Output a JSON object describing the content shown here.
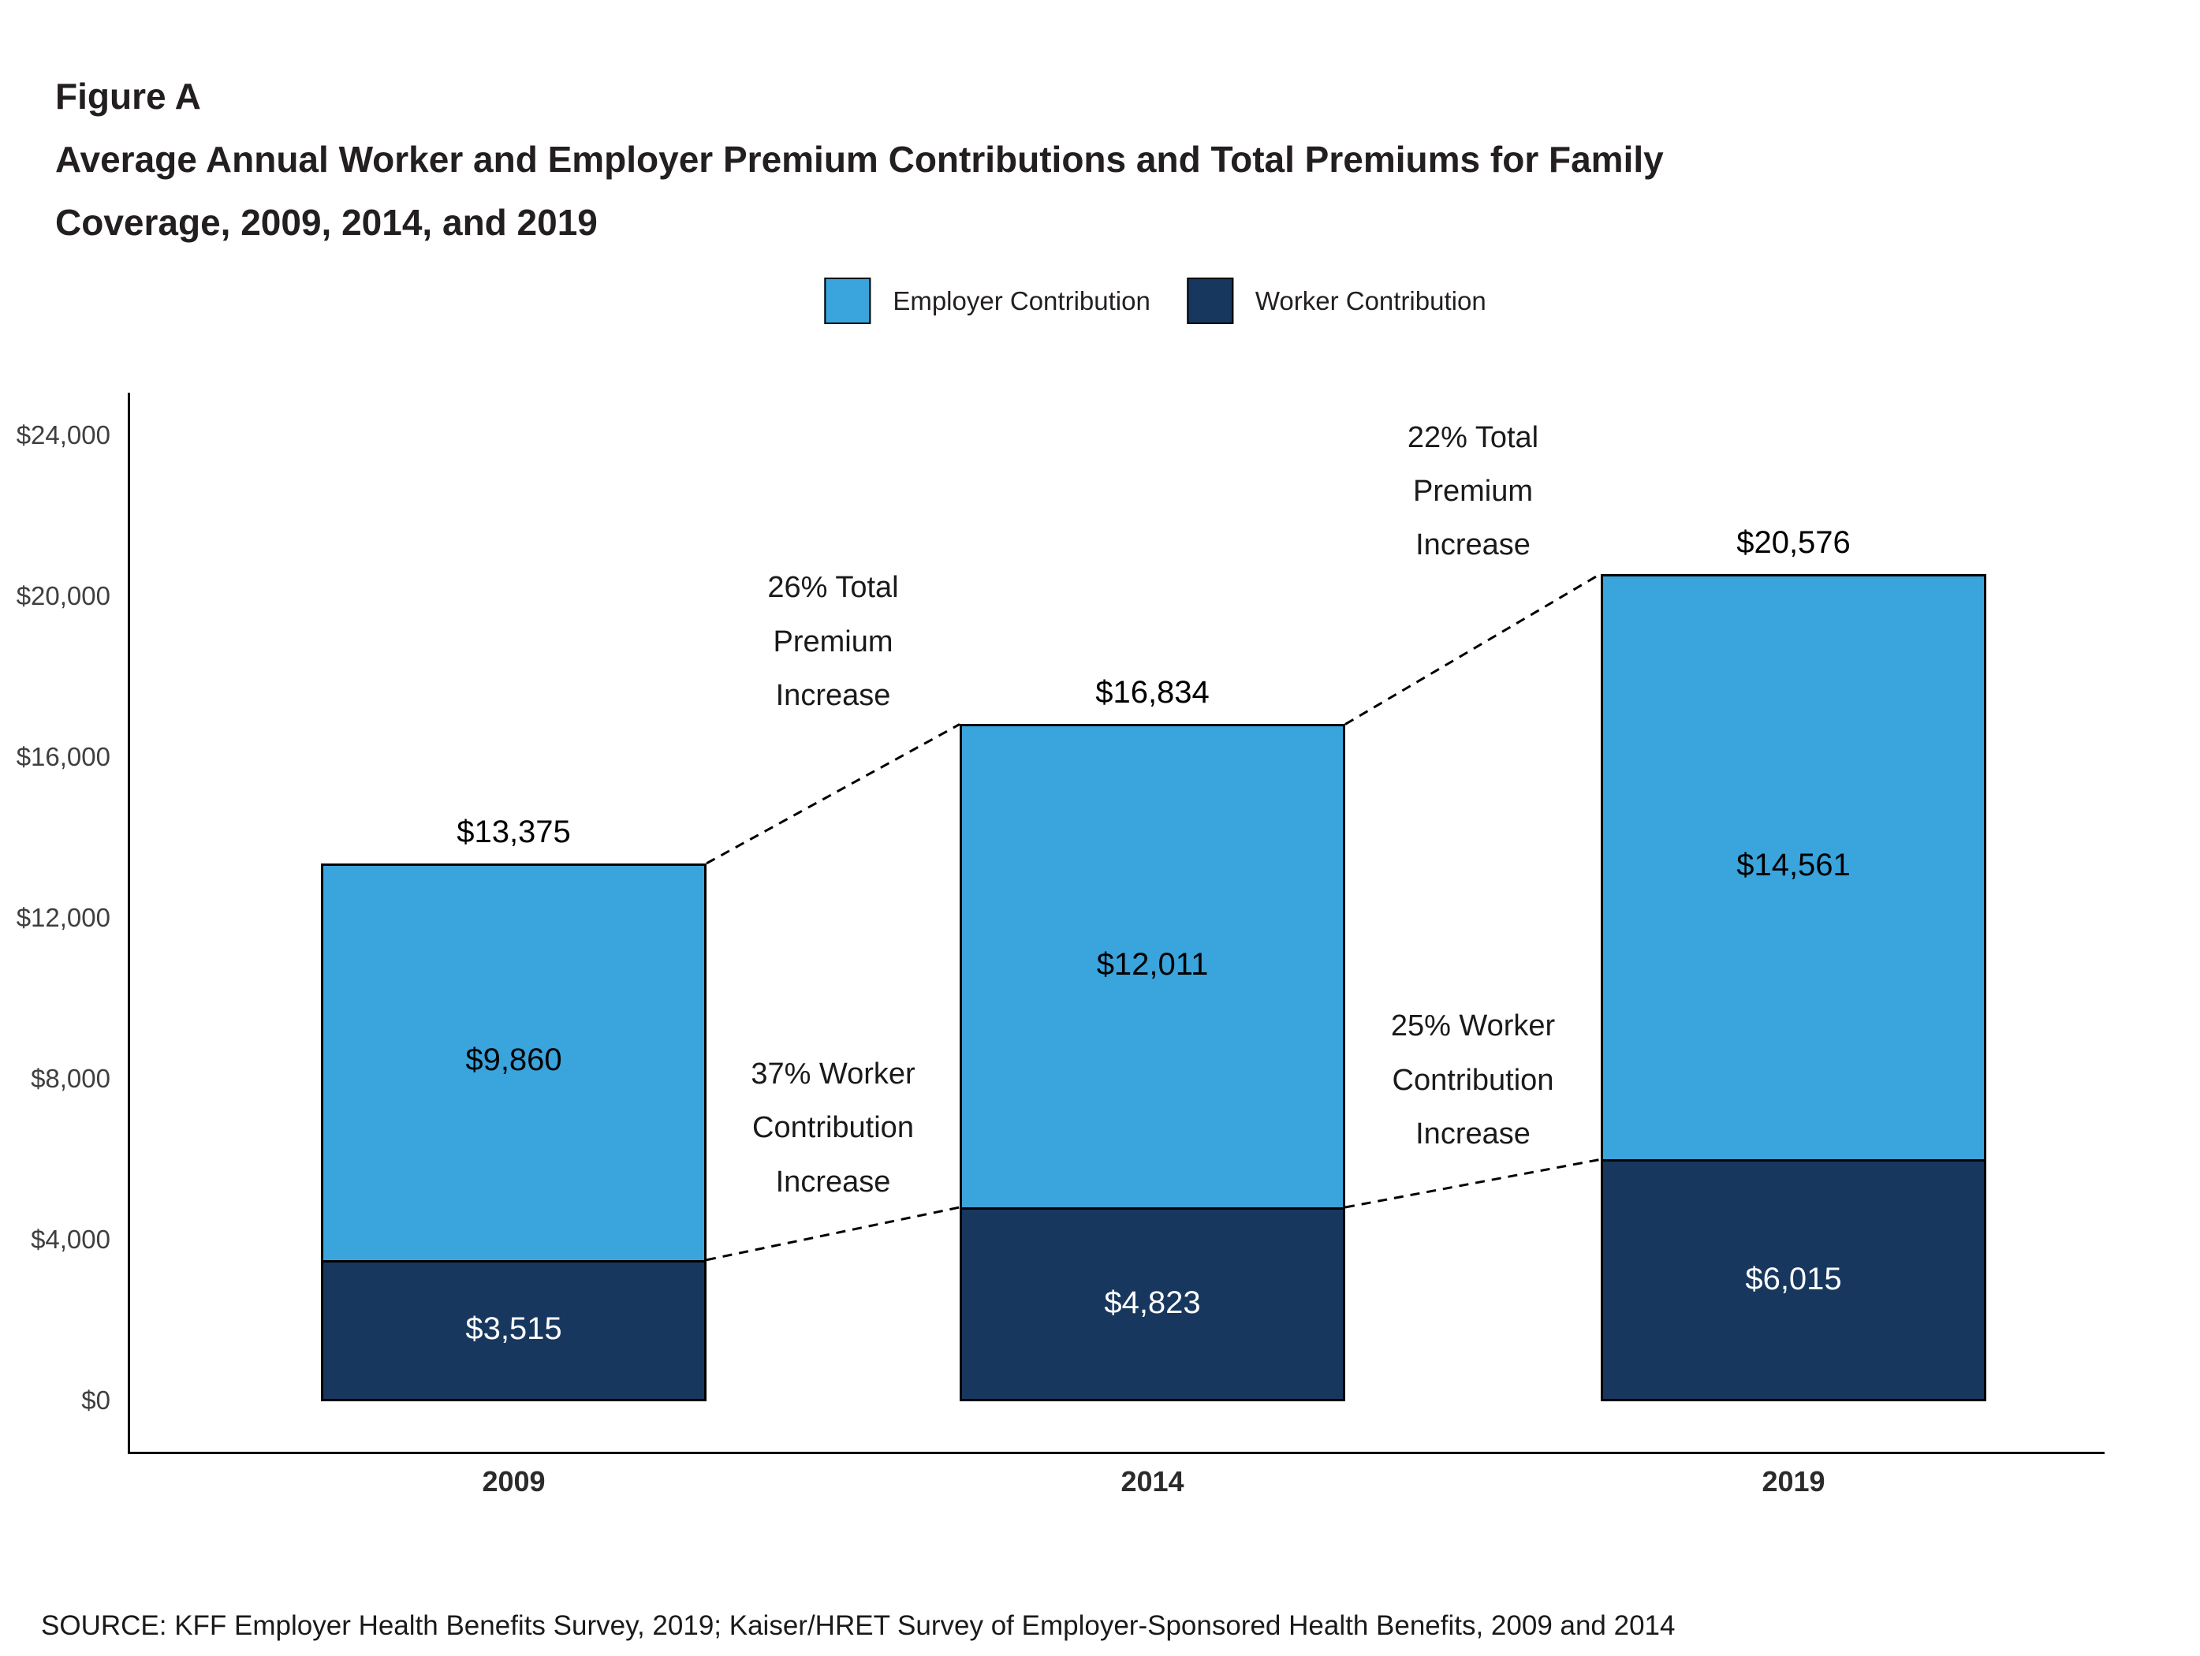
{
  "figure": {
    "label": "Figure A",
    "title_line1": "Average Annual Worker and Employer Premium Contributions and Total Premiums for Family",
    "title_line2": "Coverage, 2009, 2014, and 2019"
  },
  "source": "SOURCE: KFF Employer Health Benefits Survey, 2019; Kaiser/HRET Survey of Employer-Sponsored Health Benefits, 2009 and 2014",
  "chart_data": {
    "type": "bar",
    "stacked": true,
    "title": "Average Annual Worker and Employer Premium Contributions and Total Premiums for Family Coverage, 2009, 2014, and 2019",
    "categories": [
      "2009",
      "2014",
      "2019"
    ],
    "series": [
      {
        "name": "Worker Contribution",
        "color": "#17375E",
        "values": [
          3515,
          4823,
          6015
        ],
        "labels": [
          "$3,515",
          "$4,823",
          "$6,015"
        ],
        "label_color": "#ffffff"
      },
      {
        "name": "Employer Contribution",
        "color": "#3AA4DC",
        "values": [
          9860,
          12011,
          14561
        ],
        "labels": [
          "$9,860",
          "$12,011",
          "$14,561"
        ],
        "label_color": "#000000"
      }
    ],
    "totals": [
      13375,
      16834,
      20576
    ],
    "total_labels": [
      "$13,375",
      "$16,834",
      "$20,576"
    ],
    "legend": [
      {
        "label": "Employer Contribution",
        "color": "#3AA4DC"
      },
      {
        "label": "Worker Contribution",
        "color": "#17375E"
      }
    ],
    "y_axis": {
      "min": 0,
      "max": 24000,
      "tick_step": 4000,
      "tick_labels": [
        "$0",
        "$4,000",
        "$8,000",
        "$12,000",
        "$16,000",
        "$20,000",
        "$24,000"
      ]
    },
    "ylim": [
      0,
      24000
    ],
    "grid": false,
    "legend_position": "top-center",
    "annotations": [
      {
        "kind": "total",
        "between": [
          0,
          1
        ],
        "lines": [
          "26% Total",
          "Premium",
          "Increase"
        ]
      },
      {
        "kind": "total",
        "between": [
          1,
          2
        ],
        "lines": [
          "22% Total",
          "Premium",
          "Increase"
        ]
      },
      {
        "kind": "worker",
        "between": [
          0,
          1
        ],
        "lines": [
          "37% Worker",
          "Contribution",
          "Increase"
        ]
      },
      {
        "kind": "worker",
        "between": [
          1,
          2
        ],
        "lines": [
          "25% Worker",
          "Contribution",
          "Increase"
        ]
      }
    ]
  }
}
